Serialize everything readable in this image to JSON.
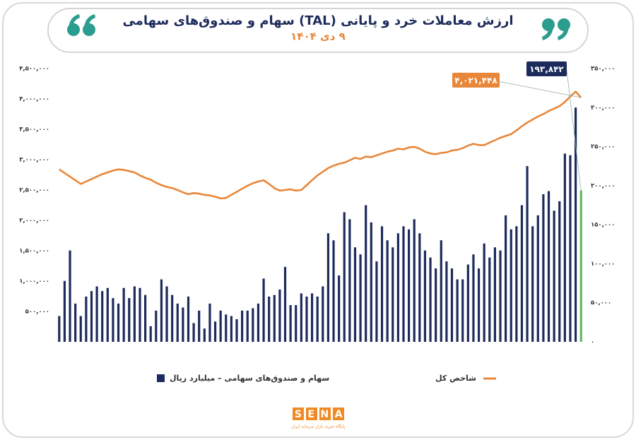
{
  "chart_data": {
    "type": "bar-line",
    "title": "ارزش معاملات خرد و پایانی (TAL) سهام و صندوق‌های سهامی",
    "subtitle": "۹ دی ۱۴۰۴",
    "categories": [
      null,
      null,
      null,
      null,
      null,
      null,
      null,
      null,
      null,
      null,
      null,
      null,
      null,
      null,
      null,
      null,
      null,
      null,
      null,
      null,
      null,
      null,
      null,
      null,
      null,
      null,
      null,
      null,
      null,
      null,
      null,
      null,
      null,
      null,
      null,
      null,
      null,
      null,
      null,
      null,
      null,
      null,
      null,
      null,
      null,
      null,
      null,
      null,
      null,
      null,
      null,
      null,
      null,
      null,
      null,
      null,
      null,
      null,
      null,
      null,
      null,
      null,
      null,
      null,
      null,
      null,
      null,
      null,
      null,
      null,
      null,
      null,
      null,
      null,
      null,
      null,
      null,
      null,
      null,
      null,
      null,
      null,
      null,
      null,
      null,
      null,
      null,
      null,
      null,
      null,
      null,
      null,
      null,
      null,
      null,
      null,
      null,
      null
    ],
    "series": [
      {
        "name": "سهام و صندوق‌های سهامی – میلیارد ریال",
        "type": "bar",
        "axis": "y2",
        "color": "#1d2b5c",
        "highlight_color": "#5cb85c",
        "values": [
          33000,
          78000,
          117000,
          49000,
          33000,
          58000,
          65000,
          71000,
          65000,
          69000,
          56000,
          49000,
          69000,
          56000,
          71000,
          69000,
          60000,
          20000,
          40000,
          80000,
          71000,
          60000,
          49000,
          44000,
          58000,
          24000,
          40000,
          17000,
          49000,
          26000,
          40000,
          35000,
          33000,
          29000,
          40000,
          40000,
          43000,
          49000,
          81000,
          58000,
          60000,
          67000,
          96000,
          47000,
          47000,
          62000,
          58000,
          62000,
          58000,
          71000,
          139000,
          130000,
          85000,
          166000,
          157000,
          121000,
          112000,
          175000,
          153000,
          103000,
          148000,
          130000,
          121000,
          139000,
          148000,
          144000,
          157000,
          139000,
          117000,
          108000,
          94000,
          130000,
          103000,
          94000,
          80000,
          80000,
          99000,
          112000,
          94000,
          126000,
          108000,
          121000,
          117000,
          162000,
          144000,
          148000,
          175000,
          225000,
          148000,
          162000,
          189000,
          193000,
          168000,
          180000,
          241000,
          239000,
          300000,
          193842
        ],
        "value_labels": [
          null,
          null,
          null,
          null,
          null,
          null,
          null,
          null,
          null,
          null,
          null,
          null,
          null,
          null,
          null,
          null,
          null,
          null,
          null,
          null,
          null,
          null,
          null,
          null,
          null,
          null,
          null,
          null,
          null,
          null,
          null,
          null,
          null,
          null,
          null,
          null,
          null,
          null,
          null,
          null,
          null,
          null,
          null,
          null,
          null,
          null,
          null,
          null,
          null,
          null,
          null,
          null,
          null,
          null,
          null,
          null,
          null,
          null,
          null,
          null,
          null,
          null,
          null,
          null,
          null,
          null,
          null,
          null,
          null,
          null,
          null,
          null,
          null,
          null,
          null,
          null,
          null,
          null,
          null,
          null,
          null,
          null,
          null,
          null,
          null,
          null,
          null,
          null,
          null,
          null,
          null,
          null,
          null,
          null,
          null,
          null,
          null,
          "۱۹۳,۸۴۲"
        ]
      },
      {
        "name": "شاخص کل",
        "type": "line",
        "axis": "y",
        "color": "#e8873a",
        "values": [
          2840000,
          2780000,
          2720000,
          2660000,
          2600000,
          2640000,
          2680000,
          2720000,
          2760000,
          2790000,
          2820000,
          2840000,
          2830000,
          2810000,
          2790000,
          2740000,
          2700000,
          2670000,
          2620000,
          2580000,
          2550000,
          2530000,
          2500000,
          2460000,
          2430000,
          2450000,
          2440000,
          2420000,
          2410000,
          2390000,
          2360000,
          2370000,
          2420000,
          2470000,
          2520000,
          2570000,
          2610000,
          2640000,
          2660000,
          2600000,
          2530000,
          2490000,
          2500000,
          2510000,
          2490000,
          2500000,
          2580000,
          2660000,
          2740000,
          2800000,
          2860000,
          2900000,
          2930000,
          2950000,
          2990000,
          3030000,
          3010000,
          3050000,
          3040000,
          3070000,
          3100000,
          3130000,
          3150000,
          3180000,
          3170000,
          3200000,
          3210000,
          3180000,
          3130000,
          3100000,
          3090000,
          3110000,
          3120000,
          3150000,
          3160000,
          3190000,
          3230000,
          3260000,
          3240000,
          3240000,
          3280000,
          3320000,
          3360000,
          3390000,
          3420000,
          3480000,
          3550000,
          3610000,
          3660000,
          3710000,
          3750000,
          3800000,
          3840000,
          3880000,
          3950000,
          4040000,
          4120000,
          4021448
        ],
        "value_labels": [
          null,
          null,
          null,
          null,
          null,
          null,
          null,
          null,
          null,
          null,
          null,
          null,
          null,
          null,
          null,
          null,
          null,
          null,
          null,
          null,
          null,
          null,
          null,
          null,
          null,
          null,
          null,
          null,
          null,
          null,
          null,
          null,
          null,
          null,
          null,
          null,
          null,
          null,
          null,
          null,
          null,
          null,
          null,
          null,
          null,
          null,
          null,
          null,
          null,
          null,
          null,
          null,
          null,
          null,
          null,
          null,
          null,
          null,
          null,
          null,
          null,
          null,
          null,
          null,
          null,
          null,
          null,
          null,
          null,
          null,
          null,
          null,
          null,
          null,
          null,
          null,
          null,
          null,
          null,
          null,
          null,
          null,
          null,
          null,
          null,
          null,
          null,
          null,
          null,
          null,
          null,
          null,
          null,
          null,
          null,
          null,
          null,
          "۴,۰۲۱,۴۴۸"
        ]
      }
    ],
    "ylim": [
      0,
      4500000
    ],
    "yticks": [
      {
        "value": 500000,
        "label": "۵۰۰,۰۰۰"
      },
      {
        "value": 1000000,
        "label": "۱,۰۰۰,۰۰۰"
      },
      {
        "value": 1500000,
        "label": "۱,۵۰۰,۰۰۰"
      },
      {
        "value": 2000000,
        "label": "۲,۰۰۰,۰۰۰"
      },
      {
        "value": 2500000,
        "label": "۲,۵۰۰,۰۰۰"
      },
      {
        "value": 3000000,
        "label": "۳,۰۰۰,۰۰۰"
      },
      {
        "value": 3500000,
        "label": "۳,۵۰۰,۰۰۰"
      },
      {
        "value": 4000000,
        "label": "۴,۰۰۰,۰۰۰"
      },
      {
        "value": 4500000,
        "label": "۴,۵۰۰,۰۰۰"
      }
    ],
    "y2lim": [
      0,
      350000
    ],
    "y2ticks": [
      {
        "value": 0,
        "label": "۰"
      },
      {
        "value": 50000,
        "label": "۵۰,۰۰۰"
      },
      {
        "value": 100000,
        "label": "۱۰۰,۰۰۰"
      },
      {
        "value": 150000,
        "label": "۱۵۰,۰۰۰"
      },
      {
        "value": 200000,
        "label": "۲۰۰,۰۰۰"
      },
      {
        "value": 250000,
        "label": "۲۵۰,۰۰۰"
      },
      {
        "value": 300000,
        "label": "۳۰۰,۰۰۰"
      },
      {
        "value": 350000,
        "label": "۳۵۰,۰۰۰"
      }
    ],
    "grid": false
  },
  "logo": {
    "name": "SENA",
    "tagline": "پایگاه خبری بازار سرمایه ایران"
  }
}
